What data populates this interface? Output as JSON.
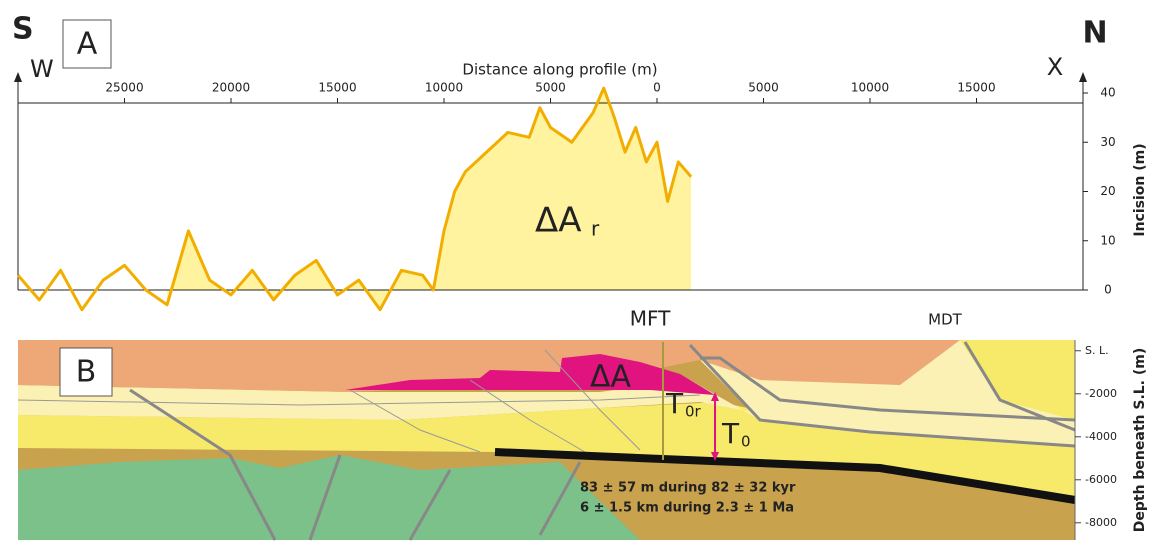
{
  "chart_data": [
    {
      "type": "line",
      "panel_label": "A",
      "corner_left_top": "S",
      "corner_left": "W",
      "corner_right_top": "N",
      "corner_right": "X",
      "x_label": "Distance along profile (m)",
      "y_label": "Incision (m)",
      "area_label": "ΔA",
      "area_label_sub": "r",
      "color": "#f2ae00",
      "area_color": "#fff3a0",
      "xlim": [
        -30000,
        20000
      ],
      "xticks": [
        {
          "value": -25000,
          "label": "25000"
        },
        {
          "value": -20000,
          "label": "20000"
        },
        {
          "value": -15000,
          "label": "15000"
        },
        {
          "value": -10000,
          "label": "10000"
        },
        {
          "value": -5000,
          "label": "5000"
        },
        0,
        5000,
        10000,
        15000
      ],
      "ylim": [
        0,
        40
      ],
      "yticks": [
        0,
        10,
        20,
        30,
        40
      ],
      "x": [
        -30000,
        -29000,
        -28000,
        -27000,
        -26000,
        -25000,
        -24000,
        -23000,
        -22000,
        -21000,
        -20000,
        -19000,
        -18000,
        -17000,
        -16000,
        -15000,
        -14000,
        -13000,
        -12000,
        -11000,
        -10500,
        -10000,
        -9500,
        -9000,
        -8000,
        -7000,
        -6000,
        -5500,
        -5000,
        -4000,
        -3000,
        -2500,
        -2000,
        -1500,
        -1000,
        -500,
        0,
        500,
        1000,
        1600
      ],
      "values": [
        3,
        -2,
        4,
        -4,
        2,
        5,
        0,
        -3,
        12,
        2,
        -1,
        4,
        -2,
        3,
        6,
        -1,
        2,
        -4,
        4,
        3,
        0,
        12,
        20,
        24,
        28,
        32,
        31,
        37,
        33,
        30,
        36,
        41,
        35,
        28,
        33,
        26,
        30,
        18,
        26,
        23
      ]
    },
    {
      "type": "cross-section",
      "panel_label": "B",
      "y_label": "Depth beneath S.L. (m)",
      "ylim": [
        -8800,
        500
      ],
      "yticks": [
        {
          "value": 0,
          "label": "S. L."
        },
        -2000,
        -4000,
        -6000,
        -8000
      ],
      "labels": {
        "mft": "MFT",
        "mdt": "MDT",
        "area": "ΔA",
        "t0r": "T",
        "t0r_sub": "0r",
        "t0": "T",
        "t0_sub": "0",
        "rate1": "83  ± 57 m during  82 ± 32 kyr",
        "rate2": "6 ± 1.5 km during  2.3 ± 1 Ma"
      }
    }
  ]
}
